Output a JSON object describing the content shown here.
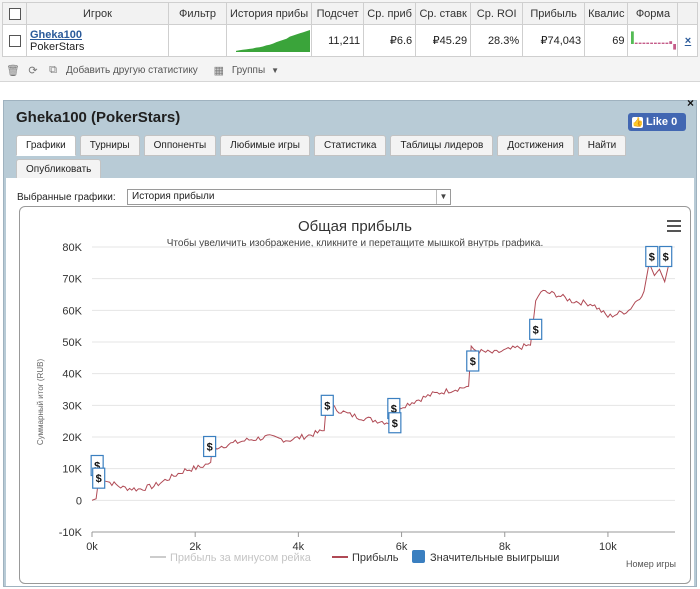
{
  "stats_table": {
    "headers": [
      "Игрок",
      "Фильтр",
      "История прибы",
      "Подсчет",
      "Ср. приб",
      "Ср. ставк",
      "Ср. ROI",
      "Прибыль",
      "Квалис",
      "Форма"
    ],
    "row": {
      "player": "Gheka100",
      "site": "PokerStars",
      "filter": "",
      "count": "11,211",
      "avg_profit": "₽6.6",
      "avg_stake": "₽45.29",
      "avg_roi": "28.3%",
      "profit": "₽74,043",
      "qual": "69"
    },
    "row_remove_icon": "remove-icon"
  },
  "toolbar": {
    "add_stats_label": "Добавить другую статистику",
    "groups_label": "Группы"
  },
  "panel": {
    "title": "Gheka100 (PokerStars)",
    "like_label": "Like 0",
    "close_label": "×",
    "tabs": [
      "Графики",
      "Турниры",
      "Оппоненты",
      "Любимые игры",
      "Статистика",
      "Таблицы лидеров",
      "Достижения",
      "Найти",
      "Опубликовать"
    ],
    "active_tab": "Графики",
    "select_label": "Выбранные графики:",
    "select_value": "История прибыли"
  },
  "colors": {
    "profit_line": "#b04a55",
    "rake_line": "#cccccc",
    "big_win_marker": "#3a7fc0",
    "tab_active_bg": "#ffffff",
    "panel_bg": "#b8cbd6"
  },
  "chart_data": {
    "type": "line",
    "title": "Общая прибыль",
    "subtitle": "Чтобы увеличить изображение, кликните и перетащите мышкой внутрь графика.",
    "xlabel": "Номер игры",
    "ylabel": "Суммарный итог (RUB)",
    "xlim": [
      0,
      11300
    ],
    "ylim": [
      -10000,
      80000
    ],
    "x_ticks": [
      "0k",
      "2k",
      "4k",
      "6k",
      "8k",
      "10k"
    ],
    "y_ticks": [
      "-10K",
      "0",
      "10K",
      "20K",
      "30K",
      "40K",
      "50K",
      "60K",
      "70K",
      "80K"
    ],
    "grid": true,
    "legend_position": "bottom",
    "series": [
      {
        "name": "Прибыль",
        "x": [
          0,
          80,
          140,
          300,
          600,
          900,
          1200,
          1500,
          1800,
          2100,
          2300,
          2330,
          2600,
          3000,
          3400,
          3800,
          4200,
          4500,
          4550,
          4700,
          5000,
          5400,
          5800,
          5820,
          5900,
          6200,
          6600,
          7000,
          7300,
          7350,
          7500,
          7800,
          8200,
          8500,
          8600,
          8700,
          9000,
          9300,
          9700,
          10000,
          10400,
          10700,
          10800,
          10900,
          11000,
          11100,
          11200
        ],
        "y": [
          0,
          500,
          8000,
          6000,
          4000,
          3500,
          4500,
          7000,
          9500,
          10500,
          12000,
          16500,
          17500,
          19000,
          20000,
          19000,
          20500,
          22000,
          32000,
          29000,
          27000,
          25500,
          24500,
          30000,
          29000,
          31000,
          33500,
          35000,
          36000,
          48000,
          47000,
          46500,
          48000,
          49000,
          63000,
          66000,
          65000,
          63000,
          62000,
          58000,
          60000,
          66000,
          75000,
          71000,
          73000,
          69000,
          76000
        ]
      },
      {
        "name": "Прибыль за минусом рейка",
        "x": [],
        "y": []
      }
    ],
    "big_wins_series": {
      "name": "Значительные выигрыши",
      "x": [
        100,
        130,
        2280,
        4560,
        5850,
        5870,
        7380,
        8600,
        10850,
        11120
      ],
      "y": [
        11000,
        7000,
        17000,
        30000,
        29000,
        24500,
        44000,
        54000,
        77000,
        77000
      ],
      "marker": "$"
    }
  },
  "legend": {
    "rake_label": "Прибыль за минусом рейка",
    "profit_label": "Прибыль",
    "bigwins_label": "Значительные выигрыши"
  },
  "form_series": [
    0.9,
    0.1,
    0.1,
    0.1,
    0.1,
    0.1,
    0.1,
    0.1,
    0.1,
    0.1,
    0.2,
    -0.4
  ],
  "history_spark": [
    0.05,
    0.08,
    0.1,
    0.12,
    0.14,
    0.16,
    0.2,
    0.22,
    0.25,
    0.3,
    0.33,
    0.38,
    0.45,
    0.5,
    0.55,
    0.6,
    0.7,
    0.75,
    0.8,
    0.85,
    0.9,
    0.95,
    1.0
  ]
}
